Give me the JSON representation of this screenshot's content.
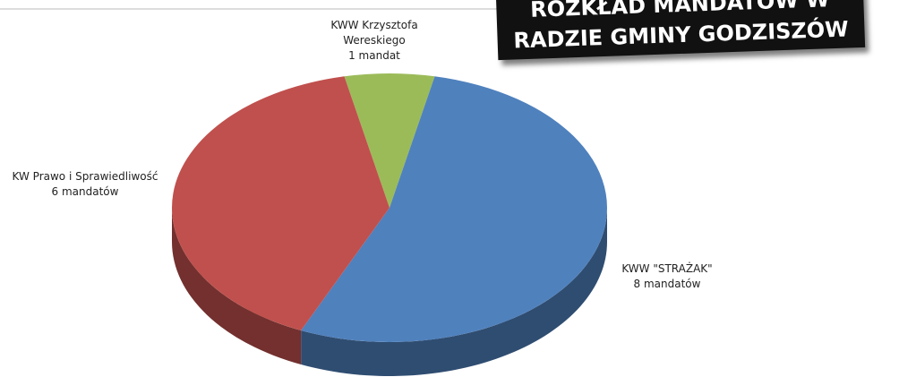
{
  "chart_data": {
    "type": "pie",
    "title": "ROZKŁAD MANDATÓW W RADZIE GMINY GODZISZÓW",
    "categories": [
      "KWW Krzysztofa Wereskiego",
      "KWW \"STRAŻAK\"",
      "KW Prawo i Sprawiedliwość"
    ],
    "values": [
      1,
      8,
      6
    ],
    "value_labels": [
      "1 mandat",
      "8 mandatów",
      "6 mandatów"
    ],
    "colors": [
      "#9bbb59",
      "#4f81bd",
      "#c0504d"
    ]
  }
}
